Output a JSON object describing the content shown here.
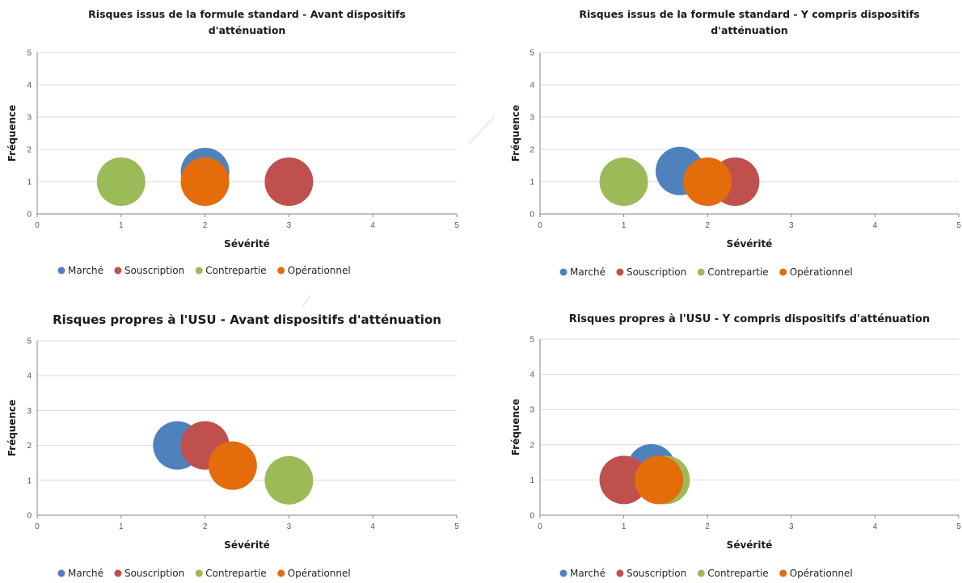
{
  "colors": {
    "Marché": "#4F81BD",
    "Souscription": "#C0504D",
    "Contrepartie": "#9BBB59",
    "Opérationnel": "#E46C0A"
  },
  "chart_data": [
    {
      "type": "bubble",
      "title_lines": [
        "Risques issus de la formule standard - Avant dispositifs",
        "d'atténuation"
      ],
      "xlabel": "Sévérité",
      "ylabel": "Fréquence",
      "xlim": [
        0,
        5
      ],
      "ylim": [
        0,
        5
      ],
      "grid": true,
      "legend": "bottom",
      "series": [
        {
          "name": "Marché",
          "x": 2,
          "y": 1.3
        },
        {
          "name": "Souscription",
          "x": 3,
          "y": 1
        },
        {
          "name": "Contrepartie",
          "x": 1,
          "y": 1
        },
        {
          "name": "Opérationnel",
          "x": 2,
          "y": 1
        }
      ]
    },
    {
      "type": "bubble",
      "title_lines": [
        "Risques issus de la formule standard - Y compris dispositifs",
        "d'atténuation"
      ],
      "xlabel": "Sévérité",
      "ylabel": "Fréquence",
      "xlim": [
        0,
        5
      ],
      "ylim": [
        0,
        5
      ],
      "grid": true,
      "legend": "bottom",
      "series": [
        {
          "name": "Marché",
          "x": 1.67,
          "y": 1.33
        },
        {
          "name": "Souscription",
          "x": 2.33,
          "y": 1
        },
        {
          "name": "Contrepartie",
          "x": 1,
          "y": 1
        },
        {
          "name": "Opérationnel",
          "x": 2,
          "y": 1
        }
      ]
    },
    {
      "type": "bubble",
      "title_lines": [
        "Risques propres à l'USU - Avant dispositifs d'atténuation"
      ],
      "xlabel": "Sévérité",
      "ylabel": "Fréquence",
      "xlim": [
        0,
        5
      ],
      "ylim": [
        0,
        5
      ],
      "grid": true,
      "legend": "bottom",
      "series": [
        {
          "name": "Marché",
          "x": 1.67,
          "y": 2
        },
        {
          "name": "Souscription",
          "x": 2,
          "y": 2
        },
        {
          "name": "Contrepartie",
          "x": 3,
          "y": 1
        },
        {
          "name": "Opérationnel",
          "x": 2.33,
          "y": 1.42
        }
      ]
    },
    {
      "type": "bubble",
      "title_lines": [
        "Risques propres à l'USU - Y compris dispositifs d'atténuation"
      ],
      "xlabel": "Sévérité",
      "ylabel": "Fréquence",
      "xlim": [
        0,
        5
      ],
      "ylim": [
        0,
        5
      ],
      "grid": true,
      "legend": "bottom",
      "series": [
        {
          "name": "Marché",
          "x": 1.33,
          "y": 1.33
        },
        {
          "name": "Souscription",
          "x": 1,
          "y": 1
        },
        {
          "name": "Contrepartie",
          "x": 1.5,
          "y": 1
        },
        {
          "name": "Opérationnel",
          "x": 1.42,
          "y": 1
        }
      ]
    }
  ]
}
